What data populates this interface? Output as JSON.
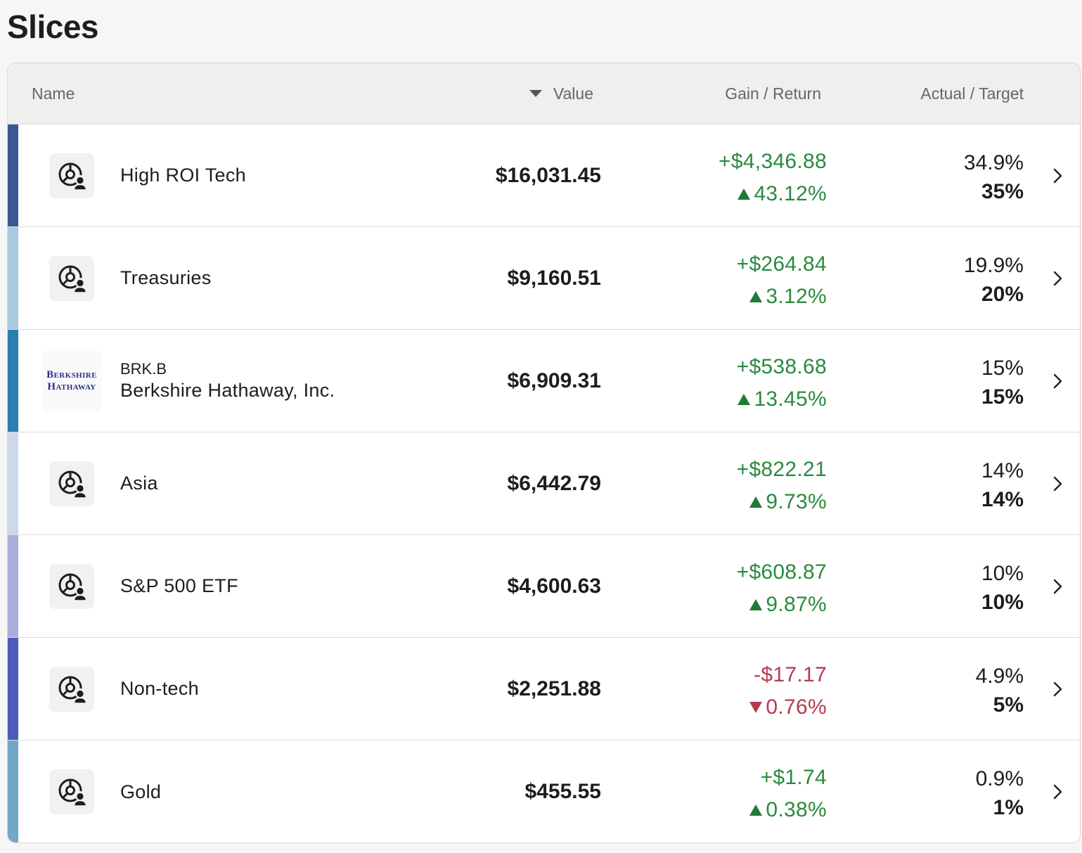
{
  "page": {
    "title": "Slices"
  },
  "header": {
    "name": "Name",
    "value": "Value",
    "gain_return": "Gain / Return",
    "actual_target": "Actual / Target"
  },
  "colors": {
    "positive": "#2a8a3e",
    "negative": "#b53a4e"
  },
  "rows": [
    {
      "icon": "pie-person-icon",
      "ticker": "",
      "name": "High ROI Tech",
      "value": "$16,031.45",
      "gain": "+$4,346.88",
      "ret": "43.12%",
      "direction": "up",
      "actual": "34.9%",
      "target": "35%",
      "stripe": "#3b5697"
    },
    {
      "icon": "pie-person-icon",
      "ticker": "",
      "name": "Treasuries",
      "value": "$9,160.51",
      "gain": "+$264.84",
      "ret": "3.12%",
      "direction": "up",
      "actual": "19.9%",
      "target": "20%",
      "stripe": "#a6cbe0"
    },
    {
      "icon": "berkshire-logo",
      "logo_line1": "Berkshire",
      "logo_line2": "Hathaway",
      "ticker": "BRK.B",
      "name": "Berkshire Hathaway, Inc.",
      "value": "$6,909.31",
      "gain": "+$538.68",
      "ret": "13.45%",
      "direction": "up",
      "actual": "15%",
      "target": "15%",
      "stripe": "#2a7fae"
    },
    {
      "icon": "pie-person-icon",
      "ticker": "",
      "name": "Asia",
      "value": "$6,442.79",
      "gain": "+$822.21",
      "ret": "9.73%",
      "direction": "up",
      "actual": "14%",
      "target": "14%",
      "stripe": "#cdd9ec"
    },
    {
      "icon": "pie-person-icon",
      "ticker": "",
      "name": "S&P 500 ETF",
      "value": "$4,600.63",
      "gain": "+$608.87",
      "ret": "9.87%",
      "direction": "up",
      "actual": "10%",
      "target": "10%",
      "stripe": "#a9aedd"
    },
    {
      "icon": "pie-person-icon",
      "ticker": "",
      "name": "Non-tech",
      "value": "$2,251.88",
      "gain": "-$17.17",
      "ret": "0.76%",
      "direction": "down",
      "actual": "4.9%",
      "target": "5%",
      "stripe": "#4f5ab8"
    },
    {
      "icon": "pie-person-icon",
      "ticker": "",
      "name": "Gold",
      "value": "$455.55",
      "gain": "+$1.74",
      "ret": "0.38%",
      "direction": "up",
      "actual": "0.9%",
      "target": "1%",
      "stripe": "#72a8c7"
    }
  ]
}
